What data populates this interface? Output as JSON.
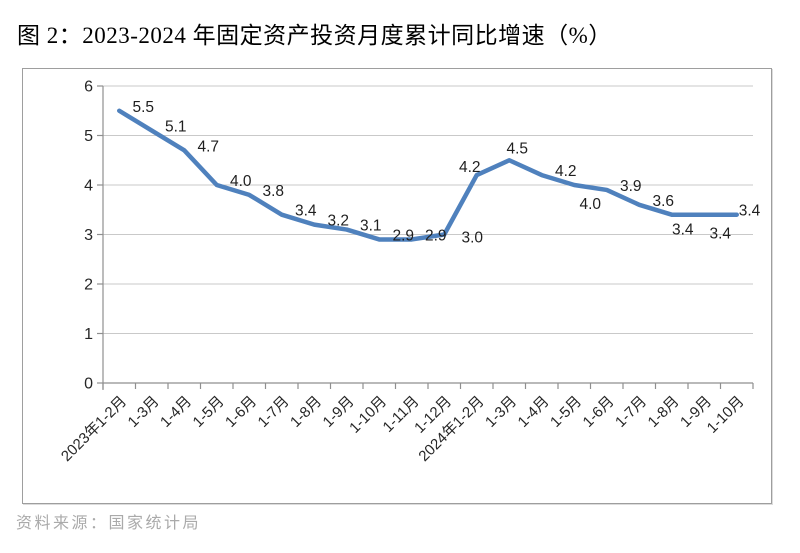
{
  "page": {
    "title": "图 2：2023-2024 年固定资产投资月度累计同比增速（%）",
    "source": "资料来源：国家统计局"
  },
  "chart_data": {
    "type": "line",
    "title": "图 2：2023-2024 年固定资产投资月度累计同比增速（%）",
    "source": "资料来源：国家统计局",
    "categories": [
      "2023年1-2月",
      "1-3月",
      "1-4月",
      "1-5月",
      "1-6月",
      "1-7月",
      "1-8月",
      "1-9月",
      "1-10月",
      "1-11月",
      "1-12月",
      "2024年1-2月",
      "1-3月",
      "1-4月",
      "1-5月",
      "1-6月",
      "1-7月",
      "1-8月",
      "1-9月",
      "1-10月"
    ],
    "values": [
      5.5,
      5.1,
      4.7,
      4.0,
      3.8,
      3.4,
      3.2,
      3.1,
      2.9,
      2.9,
      3.0,
      4.2,
      4.5,
      4.2,
      4.0,
      3.9,
      3.6,
      3.4,
      3.4,
      3.4
    ],
    "data_labels": [
      "5.5",
      "5.1",
      "4.7",
      "4.0",
      "3.8",
      "3.4",
      "3.2",
      "3.1",
      "2.9",
      "2.9",
      "3.0",
      "4.2",
      "4.5",
      "4.2",
      "4.0",
      "3.9",
      "3.6",
      "3.4",
      "3.4",
      "3.4"
    ],
    "label_side": [
      "ar",
      "ar",
      "ar",
      "ar",
      "ar",
      "ar",
      "ar",
      "ar",
      "ar",
      "ar",
      "rb",
      "al",
      "a",
      "ar",
      "br",
      "ar",
      "ar",
      "b",
      "br",
      "r"
    ],
    "ylim": [
      0,
      6
    ],
    "yticks": [
      "0",
      "1",
      "2",
      "3",
      "4",
      "5",
      "6"
    ],
    "grid": true,
    "legend": "none",
    "colors": {
      "line": "#4F81BD",
      "gridline": "#c9c9c9",
      "axis": "#8f8f8f",
      "label_text": "#1f1f1f",
      "tick_text": "#262626"
    }
  }
}
